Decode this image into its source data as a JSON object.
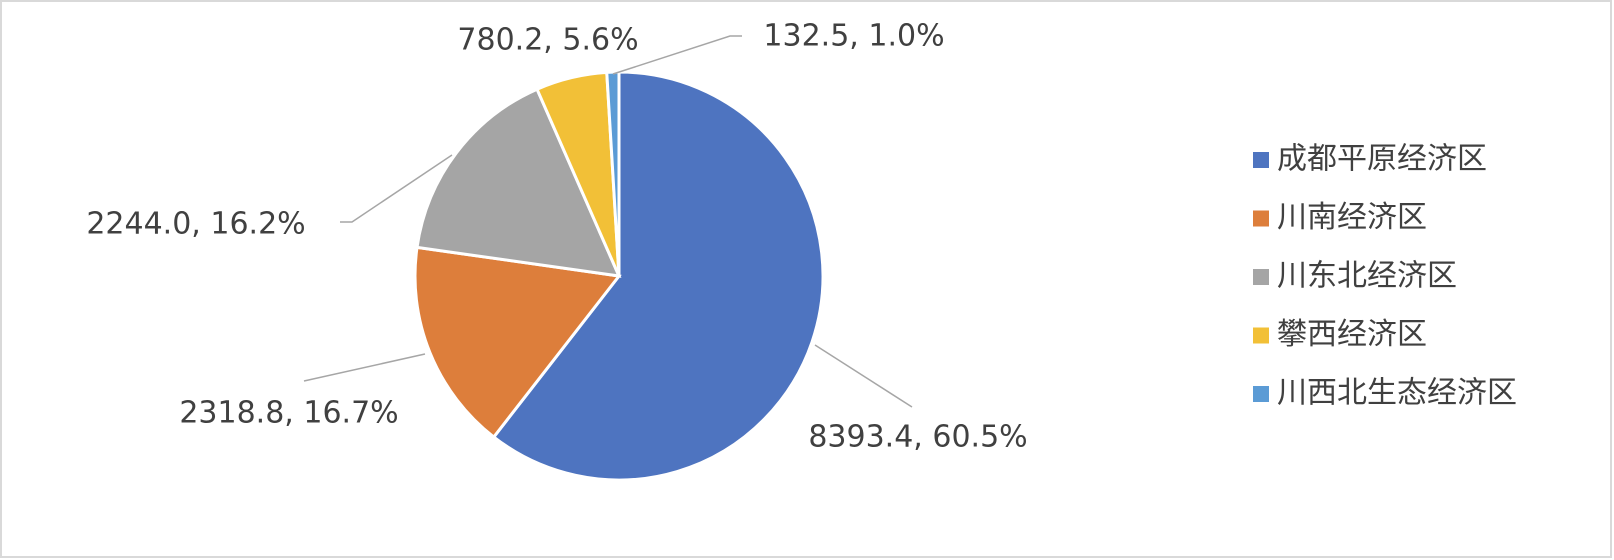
{
  "chart_data": {
    "type": "pie",
    "categories": [
      "成都平原经济区",
      "川南经济区",
      "川东北经济区",
      "攀西经济区",
      "川西北生态经济区"
    ],
    "values": [
      8393.4,
      2318.8,
      2244.0,
      780.2,
      132.5
    ],
    "value_labels": [
      "8393.4, 60.5%",
      "2318.8, 16.7%",
      "2244.0, 16.2%",
      "780.2, 5.6%",
      "132.5, 1.0%"
    ],
    "colors": [
      "#4e74c0",
      "#dd7e3b",
      "#a5a5a5",
      "#f2c037",
      "#5b9bd5"
    ],
    "legend": "right"
  }
}
